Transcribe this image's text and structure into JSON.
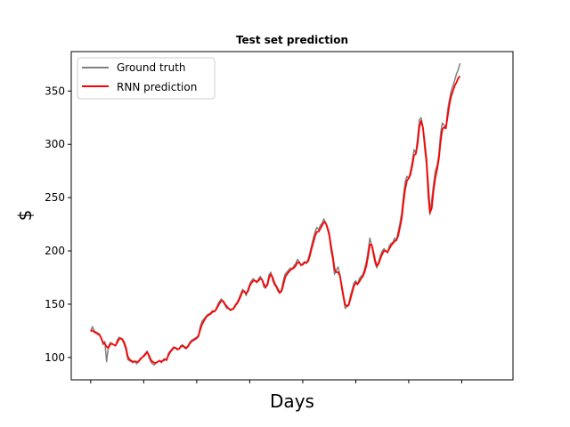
{
  "chart_data": {
    "type": "line",
    "title": "Test set prediction",
    "xlabel": "Days",
    "ylabel": "$",
    "ylim": [
      79,
      387
    ],
    "xlim": [
      -11,
      239
    ],
    "yticks": [
      100,
      150,
      200,
      250,
      300,
      350
    ],
    "xticks_unlabeled": [
      0,
      30,
      60,
      90,
      120,
      150,
      180,
      210
    ],
    "grid": false,
    "legend_placement": "top-left",
    "series": [
      {
        "name": "Ground truth",
        "color": "#808080",
        "values": [
          124,
          129,
          125,
          124,
          123,
          122,
          118,
          112,
          115,
          96,
          110,
          114,
          113,
          112,
          111,
          116,
          119,
          118,
          116,
          112,
          107,
          98,
          97,
          96,
          95,
          97,
          94,
          96,
          99,
          100,
          102,
          104,
          106,
          100,
          96,
          94,
          93,
          95,
          96,
          97,
          95,
          98,
          99,
          97,
          104,
          106,
          108,
          110,
          109,
          107,
          108,
          111,
          112,
          109,
          108,
          111,
          114,
          116,
          117,
          118,
          119,
          121,
          129,
          134,
          136,
          138,
          140,
          141,
          142,
          144,
          143,
          146,
          150,
          153,
          155,
          152,
          149,
          146,
          146,
          144,
          145,
          147,
          150,
          152,
          156,
          160,
          164,
          162,
          158,
          164,
          169,
          172,
          174,
          172,
          170,
          174,
          176,
          173,
          166,
          165,
          170,
          178,
          180,
          172,
          168,
          166,
          162,
          160,
          164,
          172,
          178,
          180,
          182,
          184,
          183,
          186,
          188,
          192,
          190,
          186,
          188,
          190,
          188,
          192,
          198,
          205,
          212,
          218,
          222,
          220,
          224,
          226,
          230,
          226,
          220,
          214,
          200,
          192,
          178,
          182,
          185,
          178,
          165,
          156,
          146,
          148,
          150,
          158,
          164,
          170,
          172,
          168,
          174,
          176,
          178,
          183,
          190,
          200,
          212,
          205,
          196,
          188,
          184,
          190,
          196,
          200,
          202,
          200,
          198,
          205,
          207,
          208,
          212,
          210,
          218,
          226,
          236,
          252,
          265,
          270,
          268,
          275,
          284,
          295,
          292,
          306,
          323,
          325,
          316,
          296,
          282,
          250,
          234,
          248,
          262,
          275,
          280,
          290,
          310,
          320,
          318,
          315,
          332,
          342,
          350,
          355,
          360,
          366,
          370,
          376
        ]
      },
      {
        "name": "RNN prediction",
        "color": "#ff0000",
        "values": [
          126,
          125,
          124,
          123,
          122,
          121,
          118,
          114,
          113,
          110,
          109,
          112,
          113,
          112,
          111,
          114,
          117,
          118,
          117,
          114,
          109,
          101,
          98,
          97,
          96,
          96,
          96,
          96,
          98,
          100,
          101,
          103,
          105,
          102,
          98,
          96,
          95,
          95,
          96,
          97,
          96,
          97,
          98,
          98,
          102,
          105,
          107,
          109,
          109,
          108,
          108,
          110,
          111,
          110,
          109,
          110,
          113,
          115,
          116,
          117,
          118,
          120,
          126,
          131,
          134,
          137,
          139,
          140,
          141,
          143,
          143,
          145,
          148,
          151,
          153,
          153,
          150,
          148,
          146,
          145,
          145,
          146,
          149,
          151,
          154,
          158,
          162,
          162,
          160,
          162,
          167,
          170,
          172,
          172,
          171,
          172,
          174,
          173,
          169,
          166,
          168,
          175,
          178,
          175,
          170,
          167,
          164,
          161,
          162,
          168,
          175,
          178,
          180,
          182,
          183,
          184,
          186,
          189,
          189,
          187,
          187,
          189,
          189,
          190,
          195,
          202,
          208,
          214,
          218,
          218,
          221,
          224,
          227,
          226,
          222,
          216,
          205,
          195,
          183,
          180,
          180,
          177,
          168,
          158,
          150,
          148,
          149,
          155,
          161,
          167,
          170,
          169,
          171,
          174,
          176,
          180,
          186,
          195,
          206,
          206,
          199,
          191,
          186,
          188,
          193,
          197,
          200,
          200,
          199,
          202,
          205,
          207,
          209,
          210,
          214,
          222,
          230,
          245,
          258,
          266,
          268,
          272,
          280,
          290,
          291,
          300,
          316,
          322,
          316,
          302,
          286,
          262,
          236,
          240,
          256,
          268,
          276,
          286,
          302,
          314,
          316,
          315,
          326,
          337,
          345,
          350,
          355,
          358,
          362,
          364
        ]
      }
    ]
  }
}
